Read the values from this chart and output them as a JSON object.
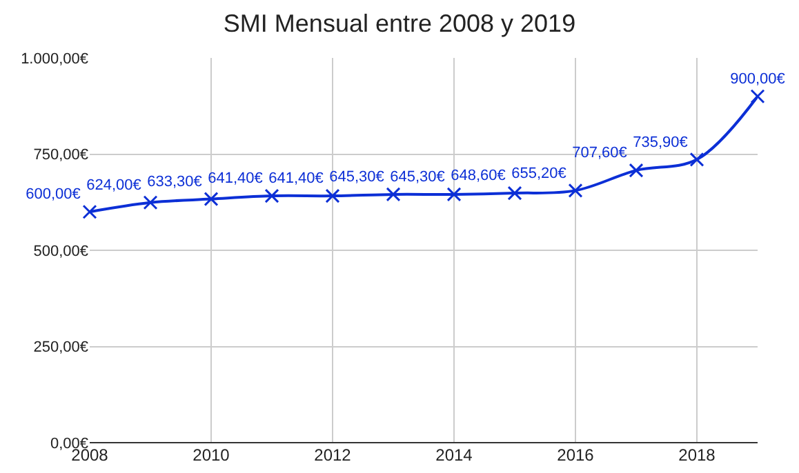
{
  "chart_data": {
    "type": "line",
    "title": "SMI Mensual entre 2008 y 2019",
    "x": [
      2008,
      2009,
      2010,
      2011,
      2012,
      2013,
      2014,
      2015,
      2016,
      2017,
      2018,
      2019
    ],
    "series": [
      {
        "color": "#0c2fd6",
        "values": [
          600,
          624,
          633.3,
          641.4,
          641.4,
          645.3,
          645.3,
          648.6,
          655.2,
          707.6,
          735.9,
          900
        ],
        "value_labels": [
          "600,00€",
          "624,00€",
          "633,30€",
          "641,40€",
          "641,40€",
          "645,30€",
          "645,30€",
          "648,60€",
          "655,20€",
          "707,60€",
          "735,90€",
          "900,00€"
        ]
      }
    ],
    "xlim": [
      2008,
      2019
    ],
    "xticks": [
      2008,
      2010,
      2012,
      2014,
      2016,
      2018
    ],
    "ylim": [
      0,
      1000
    ],
    "yticks": [
      {
        "value": 0,
        "label": "0,00€"
      },
      {
        "value": 250,
        "label": "250,00€"
      },
      {
        "value": 500,
        "label": "500,00€"
      },
      {
        "value": 750,
        "label": "750,00€"
      },
      {
        "value": 1000,
        "label": "1.000,00€"
      }
    ],
    "grid": true,
    "marker": "cross",
    "line_style": "solid"
  }
}
